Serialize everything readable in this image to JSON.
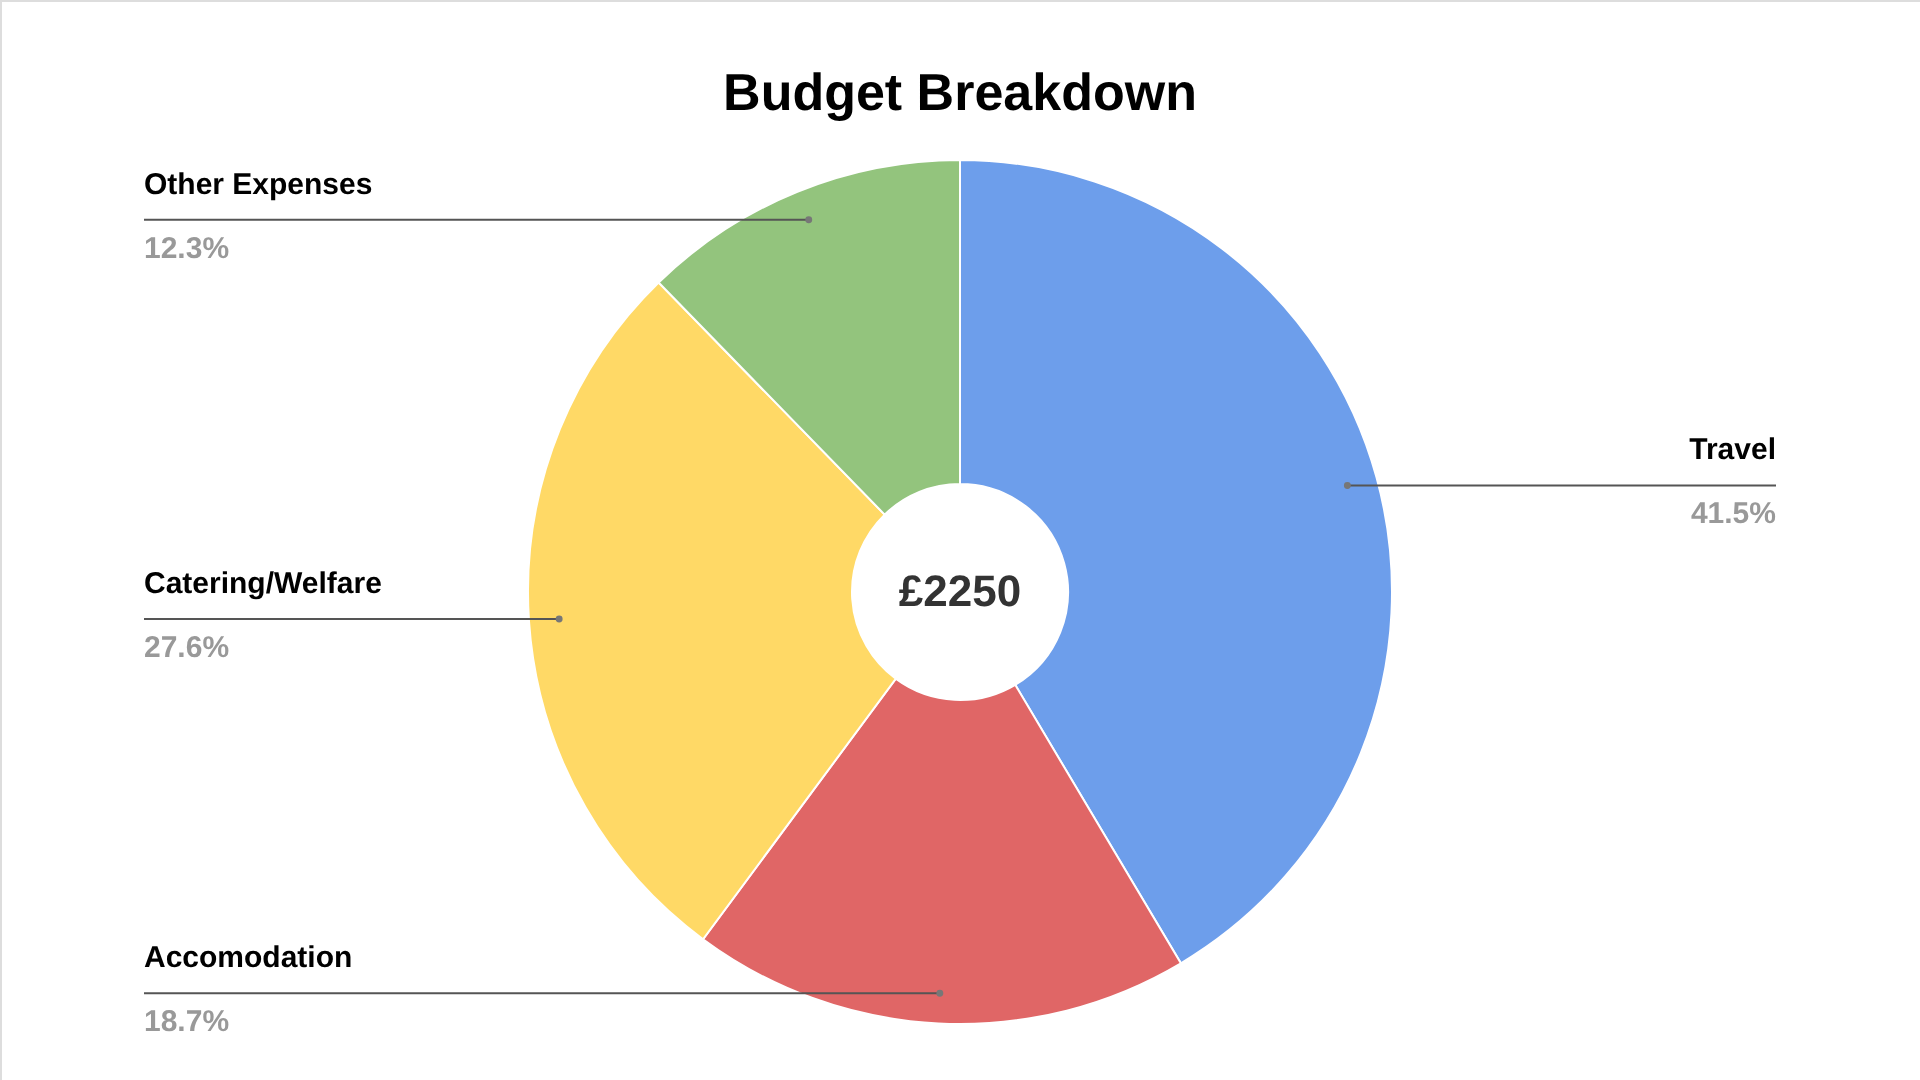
{
  "chart_data": {
    "type": "donut",
    "title": "Budget Breakdown",
    "categories": [
      "Travel",
      "Accomodation",
      "Catering/Welfare",
      "Other Expenses"
    ],
    "values": [
      41.5,
      18.7,
      27.6,
      12.3
    ],
    "value_labels": [
      "41.5%",
      "18.7%",
      "27.6%",
      "12.3%"
    ],
    "colors": [
      "#6d9eeb",
      "#e06666",
      "#ffd966",
      "#93c47d"
    ],
    "annotations": [
      "£2250"
    ],
    "legend": false
  }
}
